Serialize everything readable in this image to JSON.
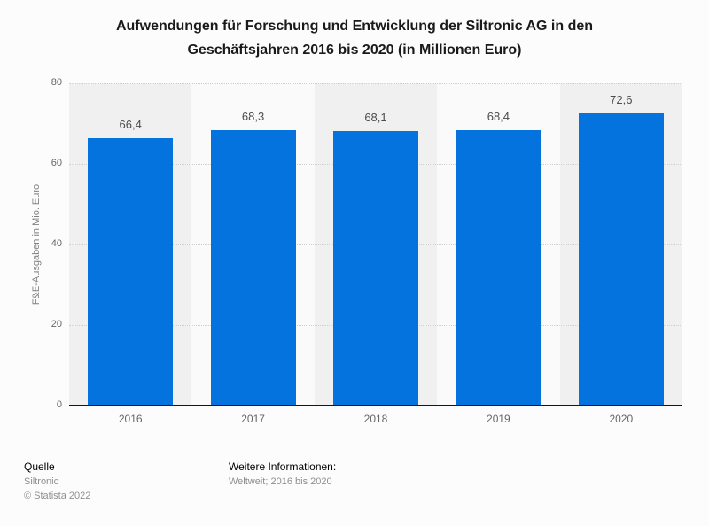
{
  "chart_data": {
    "type": "bar",
    "title": "Aufwendungen für Forschung und Entwicklung der Siltronic AG in den Geschäftsjahren 2016 bis 2020 (in Millionen Euro)",
    "categories": [
      "2016",
      "2017",
      "2018",
      "2019",
      "2020"
    ],
    "values": [
      66.4,
      68.3,
      68.1,
      68.4,
      72.6
    ],
    "value_labels": [
      "66,4",
      "68,3",
      "68,1",
      "68,4",
      "72,6"
    ],
    "xlabel": "",
    "ylabel": "F&E-Ausgaben in Mio. Euro",
    "ylim": [
      0,
      80
    ],
    "yticks": [
      0,
      20,
      40,
      60,
      80
    ],
    "grid": "horizontal-dotted",
    "legend": "none",
    "bar_color": "#0473dd",
    "band_colors": [
      "#f0f0f0",
      "#fafafa"
    ]
  },
  "footer": {
    "source_label": "Quelle",
    "source": "Siltronic",
    "copyright": "© Statista 2022",
    "info_label": "Weitere Informationen:",
    "info": "Weltweit; 2016 bis 2020"
  }
}
